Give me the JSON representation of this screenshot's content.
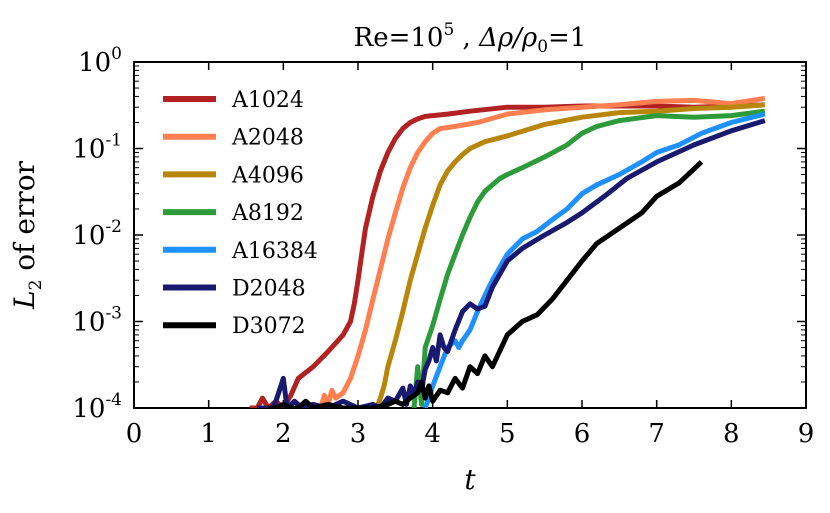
{
  "chart_data": {
    "type": "line",
    "yscale": "log",
    "title": "Re = 10^5 , Δρ/ρ₀ = 1",
    "title_parts": {
      "re_base": "Re",
      "re_eq": "=10",
      "re_exp": "5",
      "sep": " , ",
      "rho_expr": "Δρ/ρ",
      "rho_sub": "0",
      "rho_eq": "=1"
    },
    "xlabel": "t",
    "ylabel_parts": {
      "main": "L",
      "sub": "2",
      "rest": " of error"
    },
    "xlim": [
      0,
      9
    ],
    "ylim": [
      0.0001,
      1
    ],
    "x_ticks": [
      "0",
      "1",
      "2",
      "3",
      "4",
      "5",
      "6",
      "7",
      "8",
      "9"
    ],
    "y_ticks": [
      {
        "value": 1,
        "base": "10",
        "exp": "0"
      },
      {
        "value": 0.1,
        "base": "10",
        "exp": "-1"
      },
      {
        "value": 0.01,
        "base": "10",
        "exp": "-2"
      },
      {
        "value": 0.001,
        "base": "10",
        "exp": "-3"
      },
      {
        "value": 0.0001,
        "base": "10",
        "exp": "-4"
      }
    ],
    "legend_position": "upper-left",
    "series": [
      {
        "name": "A1024",
        "color": "#b22222",
        "x": [
          1.55,
          1.65,
          1.72,
          1.8,
          1.9,
          2.0,
          2.1,
          2.2,
          2.4,
          2.6,
          2.8,
          2.9,
          2.95,
          3.0,
          3.05,
          3.1,
          3.2,
          3.3,
          3.4,
          3.5,
          3.6,
          3.7,
          3.8,
          3.9,
          4.0,
          4.2,
          4.5,
          5.0,
          5.5,
          6.0,
          6.5,
          7.0,
          7.5,
          8.0,
          8.43
        ],
        "y": [
          0.0001,
          0.0001,
          0.00013,
          0.0001,
          0.00012,
          0.0001,
          0.00014,
          0.00022,
          0.0003,
          0.00045,
          0.0007,
          0.001,
          0.0016,
          0.003,
          0.006,
          0.012,
          0.028,
          0.055,
          0.09,
          0.13,
          0.17,
          0.2,
          0.22,
          0.235,
          0.24,
          0.25,
          0.27,
          0.3,
          0.3,
          0.31,
          0.31,
          0.31,
          0.3,
          0.31,
          0.32
        ]
      },
      {
        "name": "A2048",
        "color": "#ff7f50",
        "x": [
          2.5,
          2.55,
          2.6,
          2.65,
          2.7,
          2.8,
          2.9,
          3.0,
          3.1,
          3.2,
          3.3,
          3.4,
          3.5,
          3.6,
          3.7,
          3.8,
          3.9,
          4.0,
          4.1,
          4.3,
          4.6,
          5.0,
          5.5,
          6.0,
          6.5,
          7.0,
          7.5,
          8.0,
          8.45
        ],
        "y": [
          0.0001,
          0.00014,
          0.00011,
          0.00016,
          0.00013,
          0.00015,
          0.00022,
          0.0004,
          0.0008,
          0.0018,
          0.004,
          0.009,
          0.018,
          0.035,
          0.06,
          0.09,
          0.12,
          0.15,
          0.17,
          0.18,
          0.2,
          0.25,
          0.28,
          0.3,
          0.32,
          0.35,
          0.36,
          0.33,
          0.38
        ]
      },
      {
        "name": "A4096",
        "color": "#b8860b",
        "x": [
          3.25,
          3.3,
          3.35,
          3.4,
          3.5,
          3.6,
          3.7,
          3.8,
          3.9,
          4.0,
          4.1,
          4.2,
          4.3,
          4.4,
          4.5,
          4.7,
          5.0,
          5.5,
          6.0,
          6.5,
          7.0,
          7.5,
          8.0,
          8.45
        ],
        "y": [
          0.0001,
          0.00013,
          0.00018,
          0.0003,
          0.0006,
          0.0013,
          0.003,
          0.006,
          0.012,
          0.022,
          0.038,
          0.055,
          0.07,
          0.085,
          0.1,
          0.12,
          0.14,
          0.19,
          0.23,
          0.26,
          0.27,
          0.29,
          0.3,
          0.32
        ]
      },
      {
        "name": "A8192",
        "color": "#2e9b3a",
        "x": [
          3.75,
          3.8,
          3.85,
          3.9,
          4.0,
          4.1,
          4.2,
          4.3,
          4.4,
          4.5,
          4.6,
          4.7,
          4.8,
          4.9,
          5.0,
          5.2,
          5.5,
          5.8,
          6.0,
          6.2,
          6.5,
          7.0,
          7.5,
          8.0,
          8.45
        ],
        "y": [
          0.0001,
          0.0003,
          0.00011,
          0.0005,
          0.0009,
          0.0018,
          0.0035,
          0.006,
          0.01,
          0.016,
          0.024,
          0.032,
          0.038,
          0.045,
          0.05,
          0.06,
          0.08,
          0.11,
          0.15,
          0.18,
          0.21,
          0.24,
          0.23,
          0.24,
          0.27
        ]
      },
      {
        "name": "A16384",
        "color": "#1e90ff",
        "x": [
          3.9,
          3.95,
          4.0,
          4.1,
          4.2,
          4.3,
          4.35,
          4.4,
          4.5,
          4.6,
          4.7,
          4.8,
          5.0,
          5.2,
          5.4,
          5.6,
          5.8,
          6.0,
          6.2,
          6.5,
          6.8,
          7.0,
          7.3,
          7.6,
          8.0,
          8.45
        ],
        "y": [
          0.0001,
          0.00013,
          0.00018,
          0.0003,
          0.0005,
          0.0006,
          0.0005,
          0.0006,
          0.0008,
          0.0013,
          0.002,
          0.003,
          0.006,
          0.009,
          0.011,
          0.015,
          0.02,
          0.03,
          0.038,
          0.05,
          0.07,
          0.09,
          0.11,
          0.15,
          0.2,
          0.25
        ]
      },
      {
        "name": "D2048",
        "color": "#191970",
        "x": [
          1.65,
          1.75,
          1.85,
          1.9,
          2.0,
          2.05,
          2.15,
          2.25,
          2.4,
          2.6,
          2.8,
          3.0,
          3.2,
          3.3,
          3.4,
          3.5,
          3.6,
          3.65,
          3.7,
          3.75,
          3.8,
          3.85,
          3.9,
          3.95,
          4.0,
          4.05,
          4.1,
          4.15,
          4.2,
          4.3,
          4.4,
          4.5,
          4.6,
          4.7,
          4.8,
          5.0,
          5.2,
          5.5,
          5.8,
          6.0,
          6.3,
          6.6,
          7.0,
          7.5,
          8.0,
          8.45
        ],
        "y": [
          0.0001,
          0.0001,
          0.0001,
          0.00012,
          0.00022,
          0.0001,
          0.00012,
          0.0001,
          0.00011,
          0.0001,
          0.00012,
          0.0001,
          0.00011,
          0.0001,
          0.00013,
          0.00012,
          0.00017,
          0.00011,
          0.00018,
          0.00014,
          0.0002,
          0.00016,
          0.00028,
          0.00035,
          0.0005,
          0.00035,
          0.0007,
          0.0005,
          0.00045,
          0.0008,
          0.0013,
          0.0016,
          0.0014,
          0.0015,
          0.0025,
          0.005,
          0.007,
          0.01,
          0.014,
          0.018,
          0.028,
          0.045,
          0.07,
          0.11,
          0.16,
          0.21
        ]
      },
      {
        "name": "D3072",
        "color": "#000000",
        "x": [
          1.8,
          1.9,
          2.0,
          2.1,
          2.2,
          2.3,
          2.4,
          2.6,
          2.8,
          3.0,
          3.2,
          3.4,
          3.5,
          3.6,
          3.7,
          3.8,
          3.85,
          3.9,
          3.95,
          4.0,
          4.1,
          4.2,
          4.3,
          4.4,
          4.5,
          4.6,
          4.7,
          4.8,
          5.0,
          5.2,
          5.4,
          5.6,
          5.8,
          6.0,
          6.2,
          6.5,
          6.8,
          7.0,
          7.3,
          7.6
        ],
        "y": [
          0.0001,
          0.0001,
          0.00011,
          0.0001,
          0.0001,
          0.00012,
          0.0001,
          0.00011,
          0.0001,
          0.0001,
          0.0001,
          0.00011,
          0.00012,
          0.00011,
          0.00013,
          0.00015,
          0.0002,
          0.00013,
          0.00018,
          0.00012,
          0.00016,
          0.00015,
          0.00022,
          0.00017,
          0.0003,
          0.00025,
          0.0004,
          0.0003,
          0.0007,
          0.001,
          0.0012,
          0.0018,
          0.003,
          0.005,
          0.008,
          0.012,
          0.018,
          0.028,
          0.04,
          0.07
        ]
      }
    ]
  }
}
